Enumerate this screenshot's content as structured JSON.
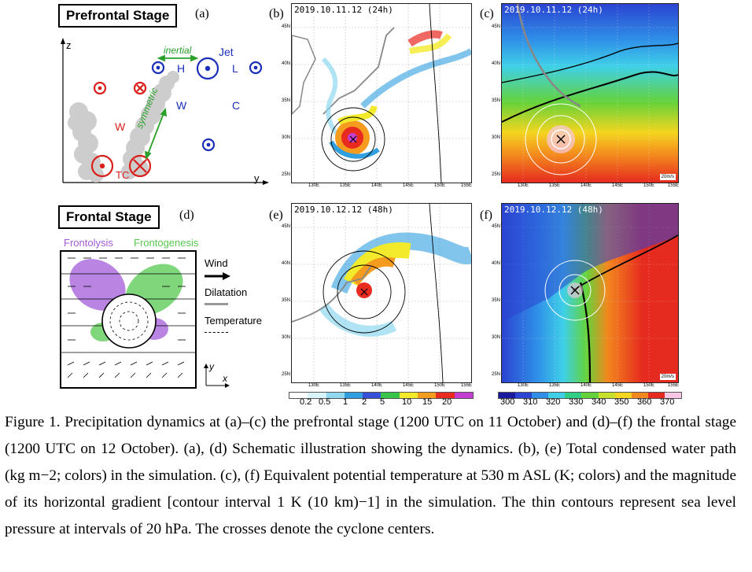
{
  "panels": {
    "a": {
      "stage_title": "Prefrontal Stage",
      "label": "(a)",
      "axis_z": "z",
      "axis_y": "y",
      "inertial": "inertial",
      "symmetric": "symmetric",
      "jet": "Jet",
      "H": "H",
      "L": "L",
      "W_left": "W",
      "W_right": "W",
      "C": "C",
      "TC": "TC"
    },
    "b": {
      "label": "(b)",
      "timestamp": "2019.10.11.12 (24h)"
    },
    "c": {
      "label": "(c)",
      "timestamp": "2019.10.11.12 (24h)",
      "scale": "20m/s"
    },
    "d": {
      "stage_title": "Frontal Stage",
      "label": "(d)",
      "frontolysis": "Frontolysis",
      "frontogenesis": "Frontogenesis",
      "wind": "Wind",
      "dilatation": "Dilatation",
      "temperature": "Temperature",
      "axis_y": "y",
      "axis_x": "x"
    },
    "e": {
      "label": "(e)",
      "timestamp": "2019.10.12.12 (48h)"
    },
    "f": {
      "label": "(f)",
      "timestamp": "2019.10.12.12 (48h)",
      "scale": "20m/s"
    }
  },
  "map_ticks": {
    "lat": [
      "45N",
      "40N",
      "35N",
      "30N",
      "25N"
    ],
    "lon": [
      "130E",
      "135E",
      "140E",
      "145E",
      "150E",
      "155E"
    ]
  },
  "colorbar_water": [
    "0.2",
    "0.5",
    "1",
    "2",
    "5",
    "10",
    "15",
    "20"
  ],
  "colorbar_theta": [
    "300",
    "310",
    "320",
    "330",
    "340",
    "350",
    "360",
    "370"
  ],
  "colors": {
    "water_bar": [
      "#ffffff",
      "#d9f4fb",
      "#8fd8ef",
      "#2f9fe0",
      "#3650d8",
      "#38c34a",
      "#f2ea2a",
      "#f59b1e",
      "#e82a1f",
      "#c43fd1"
    ],
    "theta_bar": [
      "#1a1a9e",
      "#2b44d1",
      "#2f8fe8",
      "#3fd0e8",
      "#2fce84",
      "#64d23a",
      "#c7e02a",
      "#f5d51f",
      "#f3871e",
      "#e52a1f",
      "#f8c7e6"
    ],
    "purple": "#a25bd8",
    "green": "#56c84f",
    "red": "#d9201b",
    "blue": "#1c2fb8"
  },
  "caption": "Figure 1. Precipitation dynamics at (a)–(c) the prefrontal stage (1200 UTC on 11 October) and (d)–(f) the frontal stage (1200 UTC on 12 October). (a), (d) Schematic illustration showing the dynamics. (b), (e) Total condensed water path (kg m−2; colors) in the simulation. (c), (f) Equivalent potential temperature at 530 m ASL (K; colors) and the magnitude of its horizontal gradient [contour interval 1 K (10 km)−1] in the simulation. The thin contours represent sea level pressure at intervals of 20 hPa. The crosses denote the cyclone centers."
}
